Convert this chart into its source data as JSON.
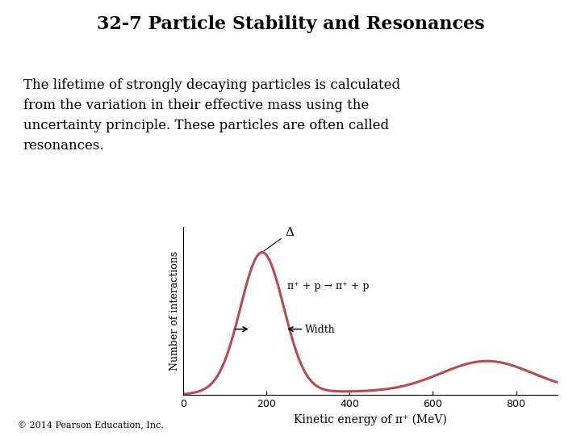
{
  "title": "32-7 Particle Stability and Resonances",
  "body_text": "The lifetime of strongly decaying particles is calculated\nfrom the variation in their effective mass using the\nuncertainty principle. These particles are often called\nresonances.",
  "footer_text": "© 2014 Pearson Education, Inc.",
  "xlabel": "Kinetic energy of π⁺ (MeV)",
  "ylabel": "Number of interactions",
  "curve_color": "#b84a52",
  "background_color": "#ffffff",
  "xlim": [
    0,
    900
  ],
  "xticks": [
    0,
    200,
    400,
    600,
    800
  ],
  "delta_label": "Δ",
  "reaction_label": "π⁺ + p → π⁺ + p",
  "width_label": "Width"
}
